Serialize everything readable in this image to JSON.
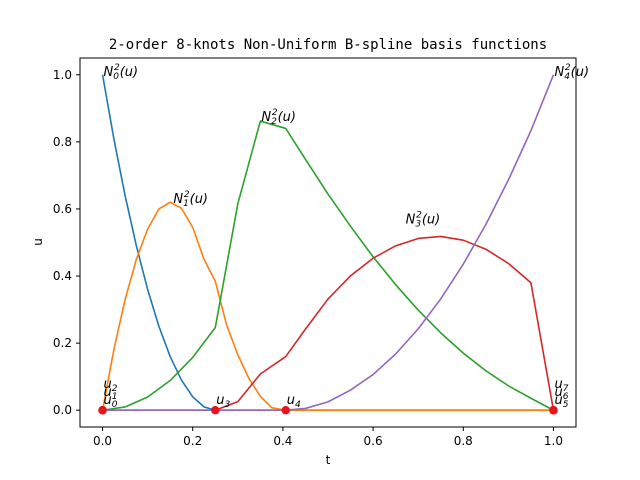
{
  "chart_data": {
    "type": "line",
    "title": "2-order 8-knots Non-Uniform B-spline basis functions",
    "xlabel": "t",
    "ylabel": "u",
    "xlim": [
      -0.05,
      1.05
    ],
    "ylim": [
      -0.05,
      1.05
    ],
    "x_ticks": [
      0.0,
      0.2,
      0.4,
      0.6,
      0.8,
      1.0
    ],
    "y_ticks": [
      0.0,
      0.2,
      0.4,
      0.6,
      0.8,
      1.0
    ],
    "x_tick_labels": [
      "0.0",
      "0.2",
      "0.4",
      "0.6",
      "0.8",
      "1.0"
    ],
    "y_tick_labels": [
      "0.0",
      "0.2",
      "0.4",
      "0.6",
      "0.8",
      "1.0"
    ],
    "grid": false,
    "legend": "none",
    "knots": [
      0,
      0,
      0,
      0.25,
      0.40625,
      1,
      1,
      1
    ],
    "knot_marker_color": "#e8141c",
    "series": [
      {
        "color": "#1f77b4",
        "label_text": "N",
        "label_sub": "0",
        "label_sup": "2",
        "label_x": 0.0,
        "label_y": 1.0,
        "x": [
          0,
          0.025,
          0.05,
          0.075,
          0.1,
          0.125,
          0.15,
          0.175,
          0.2,
          0.225,
          0.25,
          0.3,
          0.4,
          0.6,
          0.8,
          1.0
        ],
        "y": [
          1,
          0.81,
          0.64,
          0.49,
          0.36,
          0.25,
          0.16,
          0.09,
          0.04,
          0.01,
          0,
          0,
          0,
          0,
          0,
          0
        ]
      },
      {
        "color": "#ff7f0e",
        "label_text": "N",
        "label_sub": "1",
        "label_sup": "2",
        "label_x": 0.155,
        "label_y": 0.62,
        "x": [
          0,
          0.025,
          0.05,
          0.075,
          0.1,
          0.125,
          0.15,
          0.175,
          0.2,
          0.225,
          0.25,
          0.275,
          0.3,
          0.325,
          0.35,
          0.375,
          0.40625,
          0.5,
          0.7,
          1.0
        ],
        "y": [
          0,
          0.18,
          0.33,
          0.45,
          0.54,
          0.6,
          0.62,
          0.602,
          0.545,
          0.45,
          0.3846,
          0.255,
          0.165,
          0.0938,
          0.0413,
          0.0075,
          0,
          0,
          0,
          0
        ]
      },
      {
        "color": "#2ca02c",
        "label_text": "N",
        "label_sub": "2",
        "label_sup": "2",
        "label_x": 0.35,
        "label_y": 0.865,
        "x": [
          0,
          0.05,
          0.1,
          0.15,
          0.2,
          0.25,
          0.3,
          0.35,
          0.40625,
          0.45,
          0.5,
          0.55,
          0.6,
          0.65,
          0.7,
          0.75,
          0.8,
          0.85,
          0.9,
          0.95,
          1.0
        ],
        "y": [
          0,
          0.0098,
          0.0394,
          0.0886,
          0.1575,
          0.2461,
          0.6153,
          0.862,
          0.84,
          0.748,
          0.6445,
          0.5483,
          0.4574,
          0.3743,
          0.2986,
          0.2306,
          0.1703,
          0.1177,
          0.0729,
          0.0357,
          0
        ]
      },
      {
        "color": "#d62728",
        "label_text": "N",
        "label_sub": "3",
        "label_sup": "2",
        "label_x": 0.67,
        "label_y": 0.56,
        "x": [
          0,
          0.25,
          0.3,
          0.35,
          0.40625,
          0.45,
          0.5,
          0.55,
          0.6,
          0.65,
          0.7,
          0.75,
          0.8,
          0.85,
          0.9,
          0.95,
          1.0
        ],
        "y": [
          0,
          0,
          0.0257,
          0.108,
          0.16,
          0.2418,
          0.3314,
          0.4007,
          0.4531,
          0.49,
          0.512,
          0.5181,
          0.5069,
          0.4799,
          0.4378,
          0.38,
          0
        ]
      },
      {
        "color": "#9467bd",
        "label_text": "N",
        "label_sub": "4",
        "label_sup": "2",
        "label_x": 1.0,
        "label_y": 1.0,
        "x": [
          0,
          0.25,
          0.40625,
          0.45,
          0.5,
          0.55,
          0.6,
          0.65,
          0.7,
          0.75,
          0.8,
          0.85,
          0.9,
          0.95,
          1.0
        ],
        "y": [
          0,
          0,
          0,
          0.0054,
          0.0249,
          0.0602,
          0.1064,
          0.1676,
          0.2425,
          0.3318,
          0.4355,
          0.5536,
          0.6862,
          0.8332,
          1.0
        ]
      }
    ],
    "knot_labels": [
      {
        "text": "u",
        "sub": "0",
        "x": 0.0,
        "dy": 0
      },
      {
        "text": "u",
        "sub": "1",
        "x": 0.0,
        "dy": -1
      },
      {
        "text": "u",
        "sub": "2",
        "x": 0.0,
        "dy": -2
      },
      {
        "text": "u",
        "sub": "3",
        "x": 0.25,
        "dy": 0
      },
      {
        "text": "u",
        "sub": "4",
        "x": 0.40625,
        "dy": 0
      },
      {
        "text": "u",
        "sub": "5",
        "x": 1.0,
        "dy": 0
      },
      {
        "text": "u",
        "sub": "6",
        "x": 1.0,
        "dy": -1
      },
      {
        "text": "u",
        "sub": "7",
        "x": 1.0,
        "dy": -2
      }
    ]
  }
}
